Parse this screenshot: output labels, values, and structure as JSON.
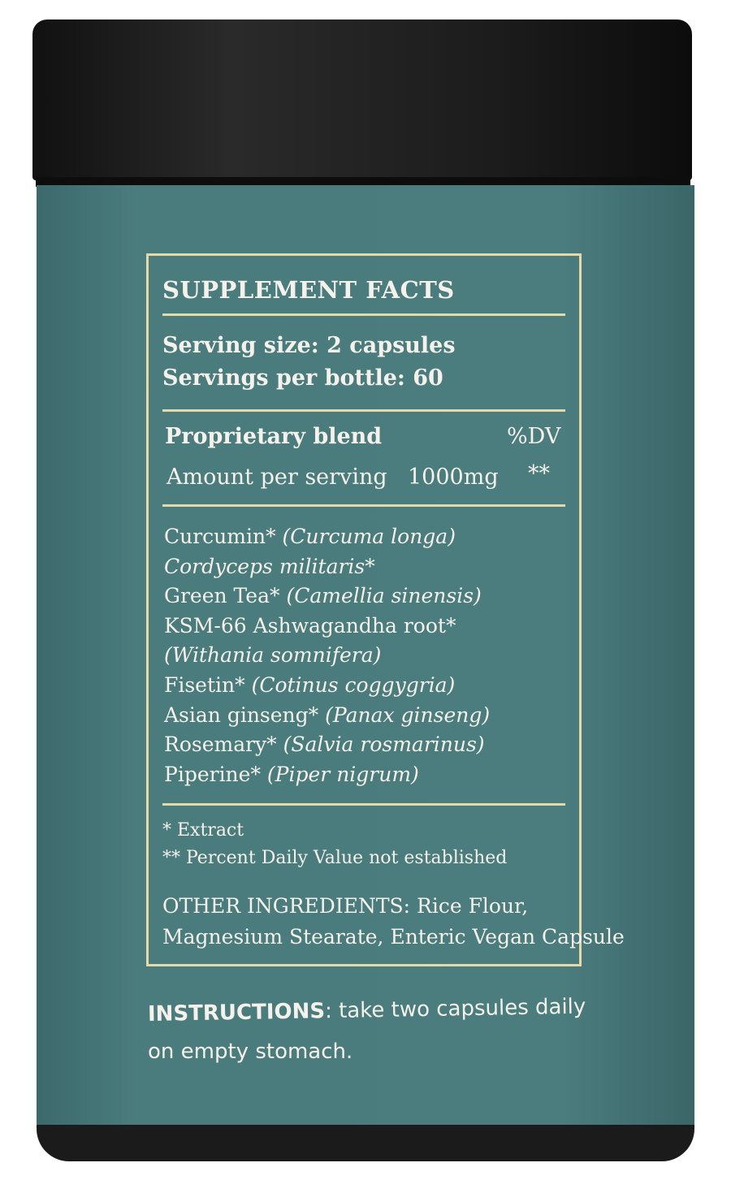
{
  "label": {
    "title": "SUPPLEMENT FACTS",
    "serving_size": "Serving size: 2 capsules",
    "servings_per_bottle": "Servings per bottle: 60",
    "blend_label": "Proprietary blend",
    "dv_header": "%DV",
    "amount_label": "Amount per serving",
    "amount_value": "1000mg",
    "amount_dv": "**",
    "ingredients": [
      {
        "name": "Curcumin*",
        "latin": "(Curcuma longa)"
      },
      {
        "name": "",
        "latin": "Cordyceps militaris*"
      },
      {
        "name": "Green Tea*",
        "latin": "(Camellia sinensis)"
      },
      {
        "name": "KSM-66 Ashwagandha root*",
        "latin": ""
      },
      {
        "name": "",
        "latin": "(Withania somnifera)"
      },
      {
        "name": "Fisetin*",
        "latin": "(Cotinus coggygria)"
      },
      {
        "name": "Asian ginseng*",
        "latin": "(Panax ginseng)"
      },
      {
        "name": "Rosemary*",
        "latin": "(Salvia rosmarinus)"
      },
      {
        "name": "Piperine*",
        "latin": "(Piper nigrum)"
      }
    ],
    "footnote_1": "* Extract",
    "footnote_2": "** Percent Daily Value not established",
    "other_ingredients_1": "OTHER INGREDIENTS: Rice Flour,",
    "other_ingredients_2": "Magnesium Stearate, Enteric Vegan Capsule"
  },
  "instructions": {
    "heading": "INSTRUCTIONS",
    "line1": ": take two capsules daily",
    "line2": "on empty stomach."
  },
  "colors": {
    "body": "#4a7b7d",
    "lid": "#1a1a1a",
    "accent": "#e3d9ab",
    "text": "#f4f2ea"
  }
}
